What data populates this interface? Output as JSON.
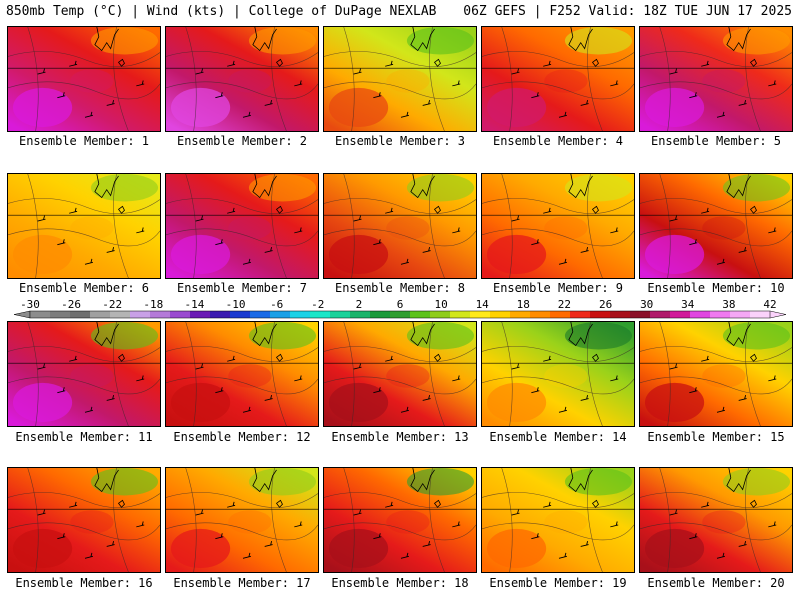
{
  "header": {
    "left": "850mb Temp (°C) | Wind (kts) | College of DuPage NEXLAB",
    "right": "06Z GEFS | F252 Valid: 18Z TUE JUN 17 2025"
  },
  "members": [
    {
      "label": "Ensemble Member: 1",
      "c": [
        "#ff6a00",
        "#e51a1a",
        "#d11a6a",
        "#d91ad9"
      ],
      "accent": "#ff9a00"
    },
    {
      "label": "Ensemble Member: 2",
      "c": [
        "#ff8c00",
        "#e51a1a",
        "#c2186a",
        "#e045e0"
      ],
      "accent": "#ff9a00"
    },
    {
      "label": "Ensemble Member: 3",
      "c": [
        "#9ad21a",
        "#d2e61a",
        "#ffaa00",
        "#e84a10"
      ],
      "accent": "#5cc21a"
    },
    {
      "label": "Ensemble Member: 4",
      "c": [
        "#ff9a00",
        "#ff6a00",
        "#e51a1a",
        "#d11a6a"
      ],
      "accent": "#d2e61a"
    },
    {
      "label": "Ensemble Member: 5",
      "c": [
        "#ff8c00",
        "#ef2a1a",
        "#c2186a",
        "#d91ad9"
      ],
      "accent": "#ff9a00"
    },
    {
      "label": "Ensemble Member: 6",
      "c": [
        "#e6ea1a",
        "#ffd200",
        "#ffaa00",
        "#ff8c00"
      ],
      "accent": "#8fcd1a"
    },
    {
      "label": "Ensemble Member: 7",
      "c": [
        "#ff6a00",
        "#e51a1a",
        "#c2186a",
        "#d91ad9"
      ],
      "accent": "#ff9a00"
    },
    {
      "label": "Ensemble Member: 8",
      "c": [
        "#ffd200",
        "#ff9a00",
        "#e84a10",
        "#c81010"
      ],
      "accent": "#8fcd1a"
    },
    {
      "label": "Ensemble Member: 9",
      "c": [
        "#ffd200",
        "#ffaa00",
        "#ff6a00",
        "#e51a1a"
      ],
      "accent": "#d2e61a"
    },
    {
      "label": "Ensemble Member: 10",
      "c": [
        "#ffd200",
        "#ff6a00",
        "#c81010",
        "#d91ad9"
      ],
      "accent": "#6dc41a"
    },
    {
      "label": "Ensemble Member: 11",
      "c": [
        "#ff9a00",
        "#e51a1a",
        "#c2186a",
        "#d91ad9"
      ],
      "accent": "#5cc21a"
    },
    {
      "label": "Ensemble Member: 12",
      "c": [
        "#ffd200",
        "#ff8c00",
        "#e51a1a",
        "#c81010"
      ],
      "accent": "#5cc21a"
    },
    {
      "label": "Ensemble Member: 13",
      "c": [
        "#d2e61a",
        "#ffaa00",
        "#e51a1a",
        "#a8101a"
      ],
      "accent": "#5cc21a"
    },
    {
      "label": "Ensemble Member: 14",
      "c": [
        "#2f9e2f",
        "#9ad21a",
        "#ffd200",
        "#ff8c00"
      ],
      "accent": "#1a7a2a"
    },
    {
      "label": "Ensemble Member: 15",
      "c": [
        "#9ad21a",
        "#ffd200",
        "#ff6a00",
        "#c81010"
      ],
      "accent": "#5cc21a"
    },
    {
      "label": "Ensemble Member: 16",
      "c": [
        "#ffaa00",
        "#ff6a00",
        "#e51a1a",
        "#c81010"
      ],
      "accent": "#5cc21a"
    },
    {
      "label": "Ensemble Member: 17",
      "c": [
        "#d2e61a",
        "#ffaa00",
        "#ff6a00",
        "#e51a1a"
      ],
      "accent": "#8fcd1a"
    },
    {
      "label": "Ensemble Member: 18",
      "c": [
        "#ffd200",
        "#ff6a00",
        "#e51a1a",
        "#a8101a"
      ],
      "accent": "#2f9e2f"
    },
    {
      "label": "Ensemble Member: 19",
      "c": [
        "#9ad21a",
        "#ffd200",
        "#ffaa00",
        "#ff6a00"
      ],
      "accent": "#5cc21a"
    },
    {
      "label": "Ensemble Member: 20",
      "c": [
        "#ffd200",
        "#ff9a00",
        "#e51a1a",
        "#a8101a"
      ],
      "accent": "#8fcd1a"
    }
  ],
  "colorbar": {
    "ticks": [
      "-30",
      "-26",
      "-22",
      "-18",
      "-14",
      "-10",
      "-6",
      "-2",
      "2",
      "6",
      "10",
      "14",
      "18",
      "22",
      "26",
      "30",
      "34",
      "38",
      "42"
    ],
    "colors": [
      "#8c8c8c",
      "#7d7d7d",
      "#6e6e6e",
      "#a0a0a0",
      "#b4b4b4",
      "#c8a0e6",
      "#b47ad8",
      "#9a4ad0",
      "#6a1ab4",
      "#3a1ab0",
      "#1a3ad0",
      "#1a6ae6",
      "#1aa0e6",
      "#1ad2e6",
      "#1ae6c8",
      "#1ad29a",
      "#1ab46a",
      "#1a9a3a",
      "#2f9e2f",
      "#5cc21a",
      "#8fcd1a",
      "#d2e61a",
      "#ffea1a",
      "#ffd200",
      "#ffaa00",
      "#ff8c00",
      "#ff6a00",
      "#ef2a1a",
      "#c81010",
      "#a8101a",
      "#8a1028",
      "#b01a6a",
      "#d11a9a",
      "#e045e0",
      "#f07af0",
      "#f5a8f5",
      "#fad2fa"
    ]
  }
}
